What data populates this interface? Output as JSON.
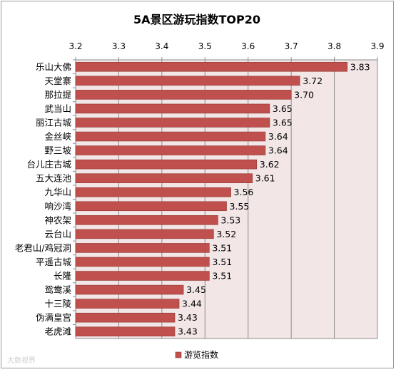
{
  "chart_data": {
    "type": "bar",
    "orientation": "horizontal",
    "title": "5A景区游玩指数TOP20",
    "xlim": [
      3.2,
      3.9
    ],
    "x_ticks": [
      "3.2",
      "3.3",
      "3.4",
      "3.5",
      "3.6",
      "3.7",
      "3.8",
      "3.9"
    ],
    "x_axis_position": "top",
    "grid": true,
    "legend_position": "bottom",
    "bar_color": "#c0504d",
    "plot_background": "#f2e6e6",
    "series": [
      {
        "name": "游览指数",
        "categories": [
          "乐山大佛",
          "天堂寨",
          "那拉提",
          "武当山",
          "丽江古城",
          "金丝峡",
          "野三坡",
          "台儿庄古城",
          "五大连池",
          "九华山",
          "响沙湾",
          "神农架",
          "云台山",
          "老君山/鸡冠洞",
          "平遥古城",
          "长隆",
          "鸳鸯溪",
          "十三陵",
          "伪满皇宫",
          "老虎滩"
        ],
        "values": [
          3.83,
          3.72,
          3.7,
          3.65,
          3.65,
          3.64,
          3.64,
          3.62,
          3.61,
          3.56,
          3.55,
          3.53,
          3.52,
          3.51,
          3.51,
          3.51,
          3.45,
          3.44,
          3.43,
          3.43
        ],
        "labels": [
          "3.83",
          "3.72",
          "3.70",
          "3.65",
          "3.65",
          "3.64",
          "3.64",
          "3.62",
          "3.61",
          "3.56",
          "3.55",
          "3.53",
          "3.52",
          "3.51",
          "3.51",
          "3.51",
          "3.45",
          "3.44",
          "3.43",
          "3.43"
        ]
      }
    ]
  },
  "watermark": "大数视界"
}
